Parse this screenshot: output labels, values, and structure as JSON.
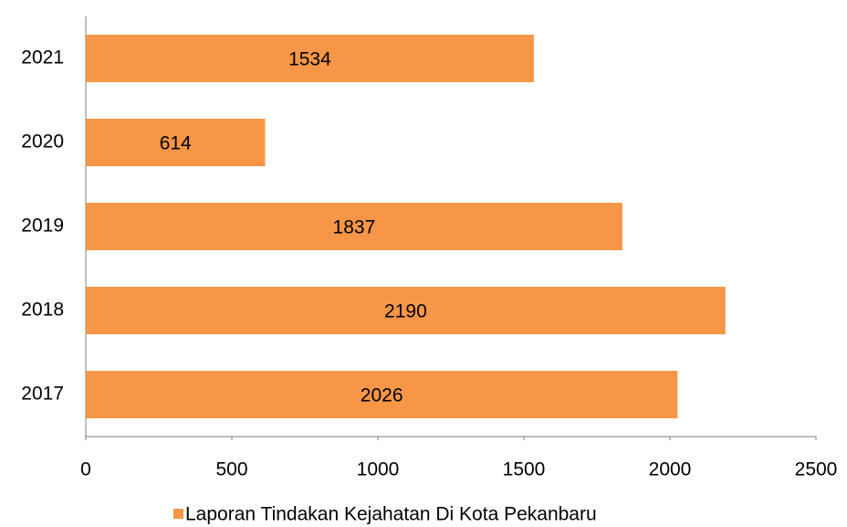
{
  "chart_data": {
    "type": "barh",
    "categories": [
      "2021",
      "2020",
      "2019",
      "2018",
      "2017"
    ],
    "series": [
      {
        "name": "Laporan Tindakan Kejahatan Di Kota Pekanbaru",
        "color": "#f79646",
        "values": [
          1534,
          614,
          1837,
          2190,
          2026
        ]
      }
    ],
    "xlim": [
      0,
      2500
    ],
    "xticks": [
      0,
      500,
      1000,
      1500,
      2000,
      2500
    ],
    "legend": "bottom"
  }
}
